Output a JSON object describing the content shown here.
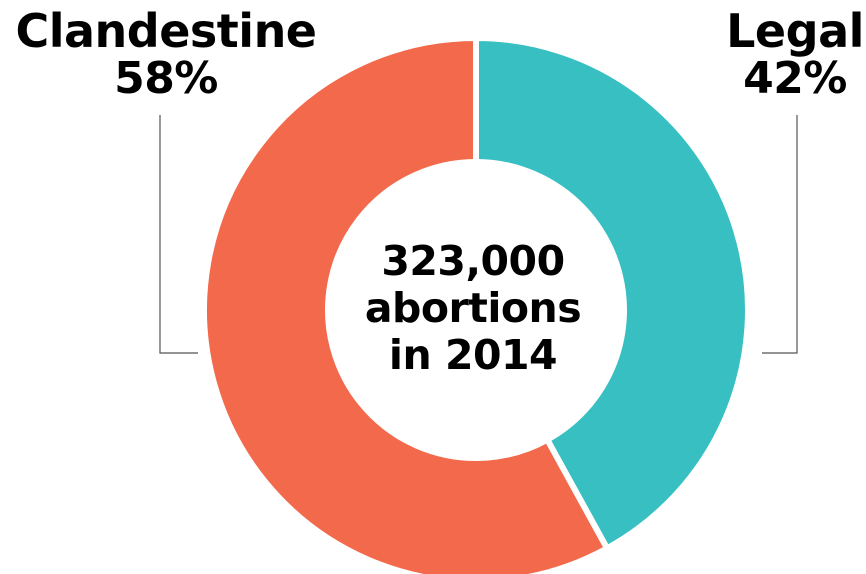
{
  "chart_data": {
    "type": "pie",
    "variant": "donut",
    "title": "",
    "center_label": [
      "323,000",
      "abortions",
      "in 2014"
    ],
    "slices": [
      {
        "name": "Legal",
        "value": 42,
        "label": "42%",
        "color": "#37BFC1"
      },
      {
        "name": "Clandestine",
        "value": 58,
        "label": "58%",
        "color": "#F26A4B"
      }
    ],
    "legend": "none",
    "leader_line_color": "#555555"
  }
}
